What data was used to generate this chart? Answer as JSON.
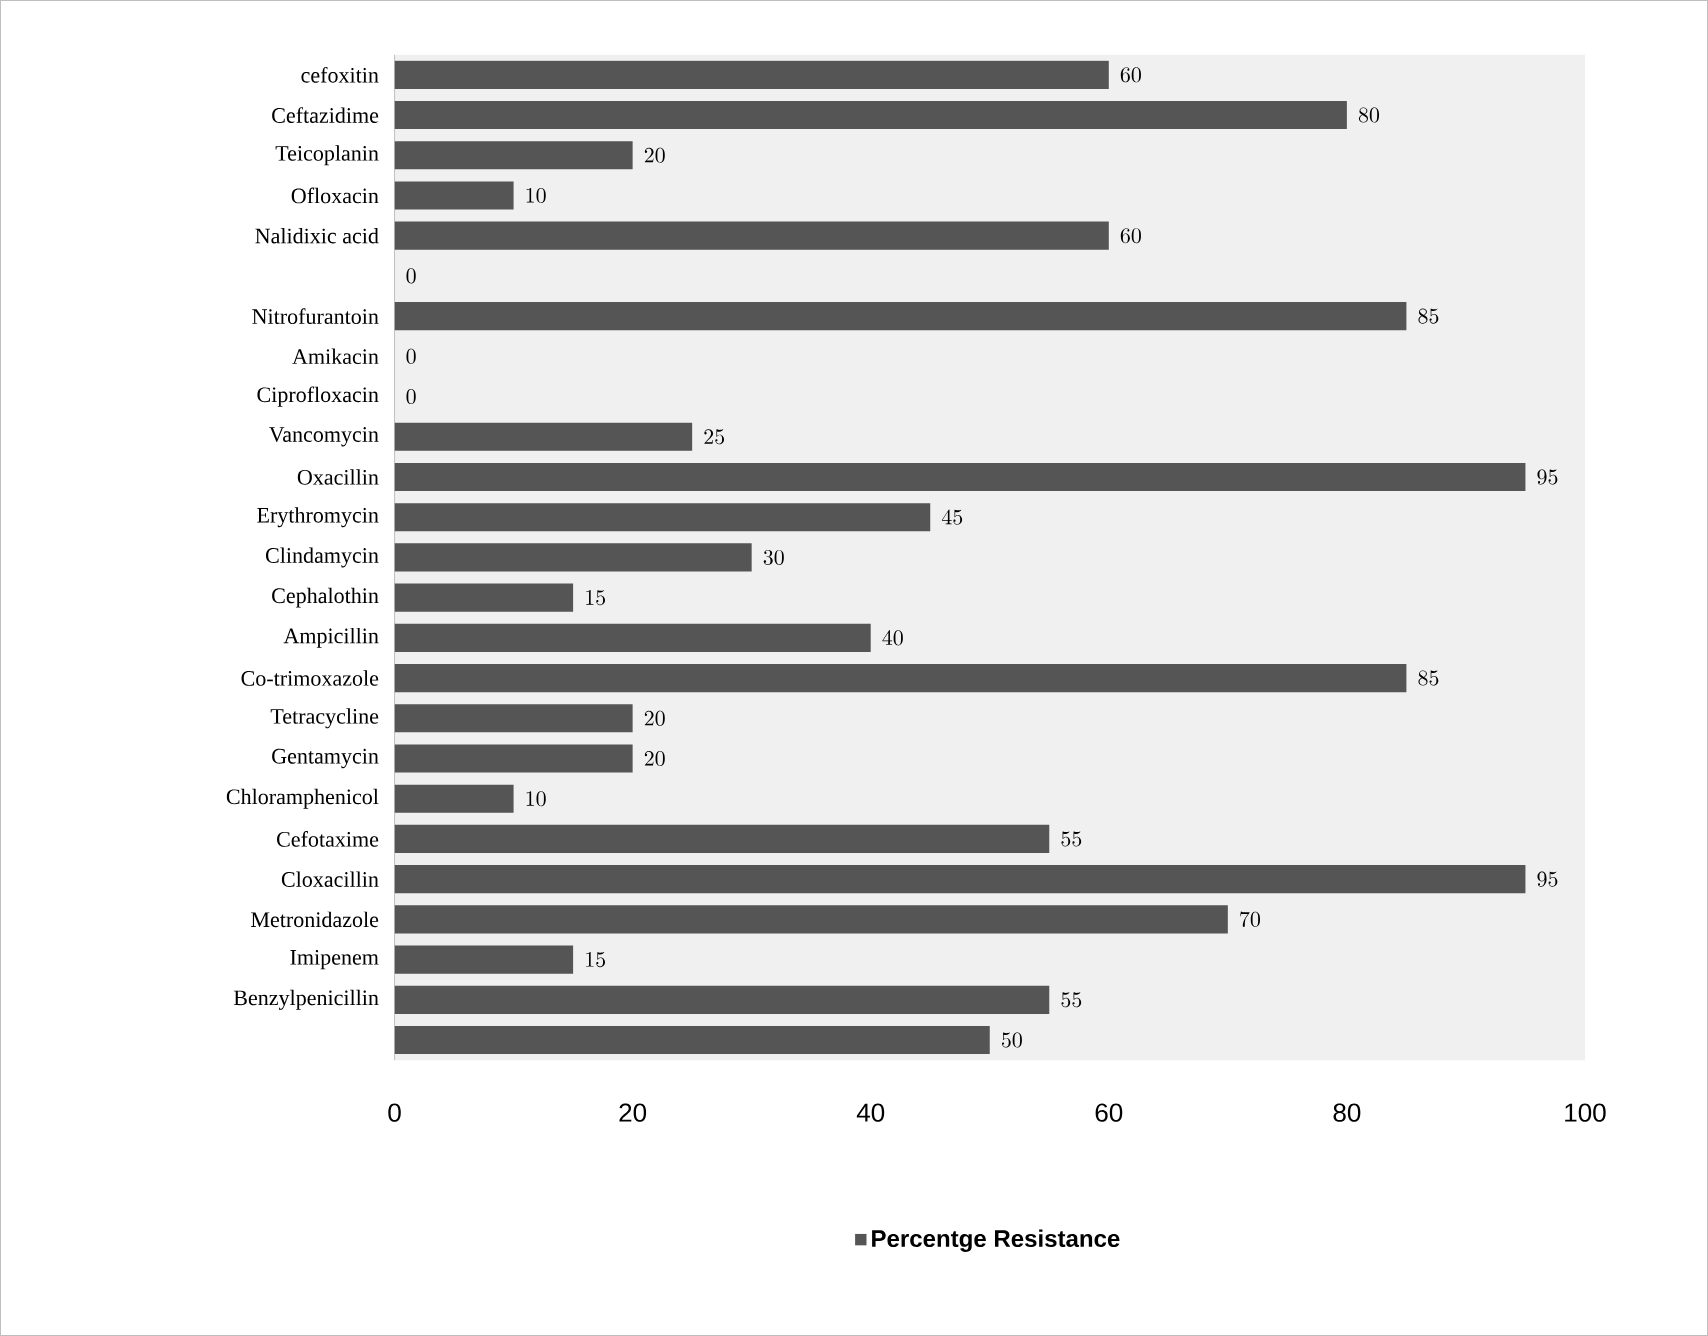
{
  "chart_data": {
    "type": "bar",
    "orientation": "horizontal",
    "categories": [
      "cefoxitin",
      "Ceftazidime",
      "Teicoplanin",
      "Ofloxacin",
      "Nalidixic acid",
      null,
      "Nitrofurantoin",
      "Amikacin",
      "Ciprofloxacin",
      "Vancomycin",
      "Oxacillin",
      "Erythromycin",
      "Clindamycin",
      "Cephalothin",
      "Ampicillin",
      "Co-trimoxazole",
      "Tetracycline",
      "Gentamycin",
      "Chloramphenicol",
      "Cefotaxime",
      "Cloxacillin",
      "Metronidazole",
      "Imipenem",
      "Benzylpenicillin",
      null
    ],
    "series": [
      {
        "name": "Percentge Resistance",
        "color": "#555555",
        "values": [
          60,
          80,
          20,
          10,
          60,
          0,
          85,
          0,
          0,
          25,
          95,
          45,
          30,
          15,
          40,
          85,
          20,
          20,
          10,
          55,
          95,
          70,
          15,
          55,
          50
        ]
      }
    ],
    "xlim": [
      0,
      100
    ],
    "xticks": [
      0,
      20,
      40,
      60,
      80,
      100
    ],
    "data_labels": true,
    "legend": "bottom"
  }
}
